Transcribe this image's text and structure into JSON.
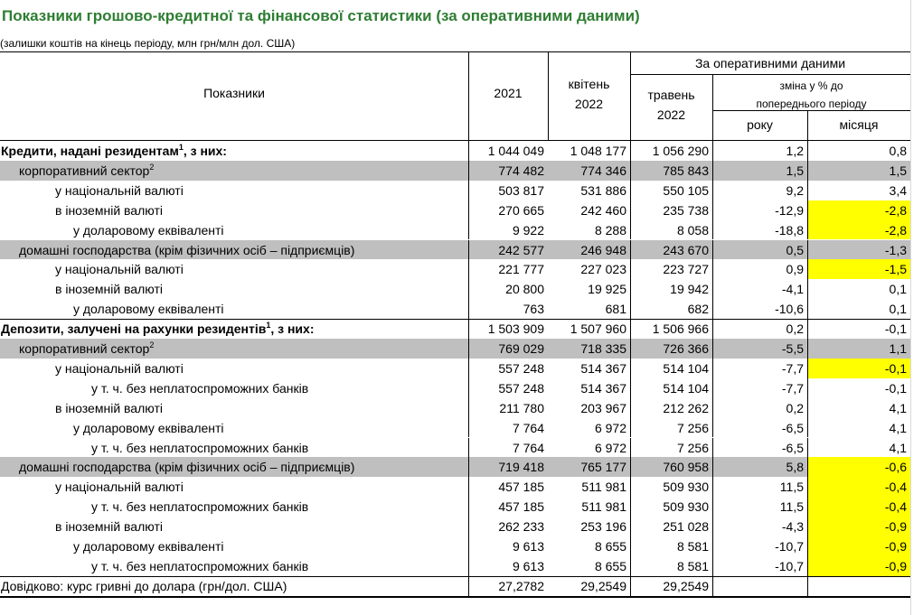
{
  "header": {
    "title": "Показники грошово-кредитної та фінансової статистики (за оперативними даними)",
    "subtitle": "(залишки коштів на кінець періоду, млн грн/млн дол. США)"
  },
  "table": {
    "columns": {
      "indicator": "Показники",
      "year2021": "2021",
      "april": [
        "квітень",
        "2022"
      ],
      "may": [
        "травень",
        "2022"
      ],
      "group": "За оперативними даними",
      "change": [
        "зміна у % до",
        "попереднього періоду"
      ],
      "year": "року",
      "month": "місяця"
    },
    "rows": [
      {
        "label": "Кредити, надані резидентам",
        "sup": "1",
        "suffix": ", з них:",
        "values": [
          "1 044 049",
          "1 048 177",
          "1 056 290",
          "1,2",
          "0,8"
        ]
      },
      {
        "label": "корпоративний сектор",
        "sup": "2",
        "values": [
          "774 482",
          "774 346",
          "785 843",
          "1,5",
          "1,5"
        ]
      },
      {
        "label": "у національній валюті",
        "values": [
          "503 817",
          "531 886",
          "550 105",
          "9,2",
          "3,4"
        ]
      },
      {
        "label": "в іноземній валюті",
        "values": [
          "270 665",
          "242 460",
          "235 738",
          "-12,9",
          "-2,8"
        ]
      },
      {
        "label": "у доларовому еквіваленті",
        "values": [
          "9 922",
          "8 288",
          "8 058",
          "-18,8",
          "-2,8"
        ]
      },
      {
        "label": "домашні господарства (крім фізичних осіб – підприємців)",
        "values": [
          "242 577",
          "246 948",
          "243 670",
          "0,5",
          "-1,3"
        ]
      },
      {
        "label": "у національній валюті",
        "values": [
          "221 777",
          "227 023",
          "223 727",
          "0,9",
          "-1,5"
        ]
      },
      {
        "label": "в іноземній валюті",
        "values": [
          "20 800",
          "19 925",
          "19 942",
          "-4,1",
          "0,1"
        ]
      },
      {
        "label": "у доларовому еквіваленті",
        "values": [
          "763",
          "681",
          "682",
          "-10,6",
          "0,1"
        ]
      },
      {
        "label": "Депозити, залучені на рахунки резидентів",
        "sup": "1",
        "suffix": ", з них:",
        "values": [
          "1 503 909",
          "1 507 960",
          "1 506 966",
          "0,2",
          "-0,1"
        ]
      },
      {
        "label": "корпоративний сектор",
        "sup": "2",
        "values": [
          "769 029",
          "718 335",
          "726 366",
          "-5,5",
          "1,1"
        ]
      },
      {
        "label": "у національній валюті",
        "values": [
          "557 248",
          "514 367",
          "514 104",
          "-7,7",
          "-0,1"
        ]
      },
      {
        "label": "у т. ч. без неплатоспроможних банків",
        "values": [
          "557 248",
          "514 367",
          "514 104",
          "-7,7",
          "-0,1"
        ]
      },
      {
        "label": "в іноземній валюті",
        "values": [
          "211 780",
          "203 967",
          "212 262",
          "0,2",
          "4,1"
        ]
      },
      {
        "label": "у доларовому еквіваленті",
        "values": [
          "7 764",
          "6 972",
          "7 256",
          "-6,5",
          "4,1"
        ]
      },
      {
        "label": "у т. ч. без неплатоспроможних банків",
        "values": [
          "7 764",
          "6 972",
          "7 256",
          "-6,5",
          "4,1"
        ]
      },
      {
        "label": "домашні господарства (крім фізичних осіб – підприємців)",
        "values": [
          "719 418",
          "765 177",
          "760 958",
          "5,8",
          "-0,6"
        ]
      },
      {
        "label": "у національній валюті",
        "values": [
          "457 185",
          "511 981",
          "509 930",
          "11,5",
          "-0,4"
        ]
      },
      {
        "label": "у т. ч. без неплатоспроможних банків",
        "values": [
          "457 185",
          "511 981",
          "509 930",
          "11,5",
          "-0,4"
        ]
      },
      {
        "label": "в іноземній валюті",
        "values": [
          "262 233",
          "253 196",
          "251 028",
          "-4,3",
          "-0,9"
        ]
      },
      {
        "label": "у доларовому еквіваленті",
        "values": [
          "9 613",
          "8 655",
          "8 581",
          "-10,7",
          "-0,9"
        ]
      },
      {
        "label": "у т. ч. без неплатоспроможних банків",
        "values": [
          "9 613",
          "8 655",
          "8 581",
          "-10,7",
          "-0,9"
        ]
      },
      {
        "label": "Довідково: курс гривні до доларa (грн/дол. США)",
        "values": [
          "27,2782",
          "29,2549",
          "29,2549"
        ]
      }
    ]
  }
}
